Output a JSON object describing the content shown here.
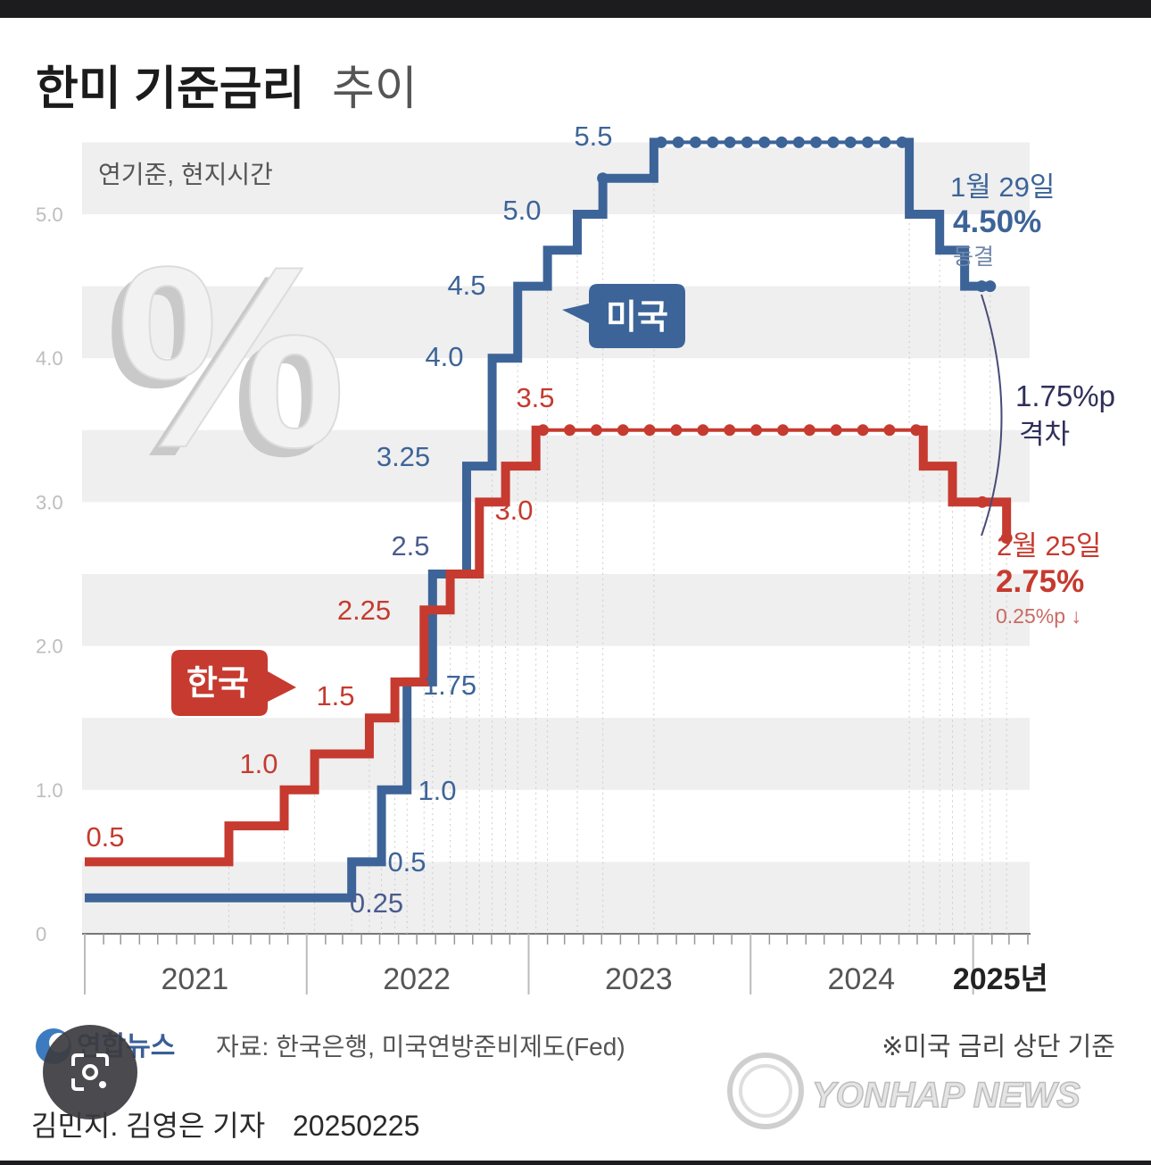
{
  "title_bold": "한미 기준금리",
  "title_light": "추이",
  "basis_note": "연기준, 현지시간",
  "percent_symbol": "%",
  "colors": {
    "us": "#3d6498",
    "kr": "#c63a2f",
    "gap": "#4a4a78",
    "grid": "#efefef"
  },
  "icons": {
    "lens": "lens-search-icon",
    "logo": "yonhap-logo-icon"
  },
  "chart_data": {
    "type": "line",
    "step": true,
    "ylim": [
      0,
      5.5
    ],
    "y_ticks": [
      "0",
      "1.0",
      "2.0",
      "3.0",
      "4.0",
      "5.0"
    ],
    "x_range": [
      "2021-01-01",
      "2025-04-01"
    ],
    "year_labels": [
      "2021",
      "2022",
      "2023",
      "2024",
      "2025년"
    ],
    "series": [
      {
        "name": "미국",
        "color": "#3d6498",
        "points": [
          [
            "2021-01-01",
            0.25
          ],
          [
            "2022-03-16",
            0.5
          ],
          [
            "2022-05-04",
            1.0
          ],
          [
            "2022-06-15",
            1.75
          ],
          [
            "2022-07-27",
            2.5
          ],
          [
            "2022-09-21",
            3.25
          ],
          [
            "2022-11-02",
            4.0
          ],
          [
            "2022-12-14",
            4.5
          ],
          [
            "2023-02-01",
            4.75
          ],
          [
            "2023-03-22",
            5.0
          ],
          [
            "2023-05-03",
            5.25
          ],
          [
            "2023-07-26",
            5.5
          ],
          [
            "2024-09-18",
            5.0
          ],
          [
            "2024-11-07",
            4.75
          ],
          [
            "2024-12-18",
            4.5
          ],
          [
            "2025-01-29",
            4.5
          ]
        ],
        "labels": [
          {
            "text": "0.25",
            "value": 0.25
          },
          {
            "text": "0.5",
            "value": 0.5
          },
          {
            "text": "1.0",
            "value": 1.0
          },
          {
            "text": "1.75",
            "value": 1.75
          },
          {
            "text": "2.5",
            "value": 2.5
          },
          {
            "text": "3.25",
            "value": 3.25
          },
          {
            "text": "4.0",
            "value": 4.0
          },
          {
            "text": "4.5",
            "value": 4.5
          },
          {
            "text": "5.0",
            "value": 5.0
          },
          {
            "text": "5.5",
            "value": 5.5
          }
        ]
      },
      {
        "name": "한국",
        "color": "#c63a2f",
        "points": [
          [
            "2021-01-01",
            0.5
          ],
          [
            "2021-08-26",
            0.75
          ],
          [
            "2021-11-25",
            1.0
          ],
          [
            "2022-01-14",
            1.25
          ],
          [
            "2022-04-14",
            1.5
          ],
          [
            "2022-05-26",
            1.75
          ],
          [
            "2022-07-13",
            2.25
          ],
          [
            "2022-08-25",
            2.5
          ],
          [
            "2022-10-12",
            3.0
          ],
          [
            "2022-11-24",
            3.25
          ],
          [
            "2023-01-13",
            3.5
          ],
          [
            "2024-10-11",
            3.25
          ],
          [
            "2024-11-28",
            3.0
          ],
          [
            "2025-01-16",
            3.0
          ],
          [
            "2025-02-25",
            2.75
          ]
        ],
        "labels": [
          {
            "text": "0.5",
            "value": 0.5
          },
          {
            "text": "1.0",
            "value": 1.0
          },
          {
            "text": "1.5",
            "value": 1.5
          },
          {
            "text": "2.25",
            "value": 2.25
          },
          {
            "text": "3.0",
            "value": 3.0
          },
          {
            "text": "3.5",
            "value": 3.5
          }
        ]
      }
    ],
    "annotations": {
      "us_date": "1월 29일",
      "us_rate": "4.50%",
      "us_status": "동결",
      "kr_date": "2월 25일",
      "kr_rate": "2.75%",
      "kr_change": "0.25%p ↓",
      "gap_value": "1.75%p",
      "gap_label": "격차",
      "us_tag": "미국",
      "kr_tag": "한국"
    }
  },
  "footer": {
    "logo_text": "연합뉴스",
    "source": "자료: 한국은행, 미국연방준비제도(Fed)",
    "note": "※미국 금리 상단 기준",
    "credit": "김민지. 김영은 기자",
    "date": "20250225",
    "watermark": "YONHAP NEWS"
  }
}
